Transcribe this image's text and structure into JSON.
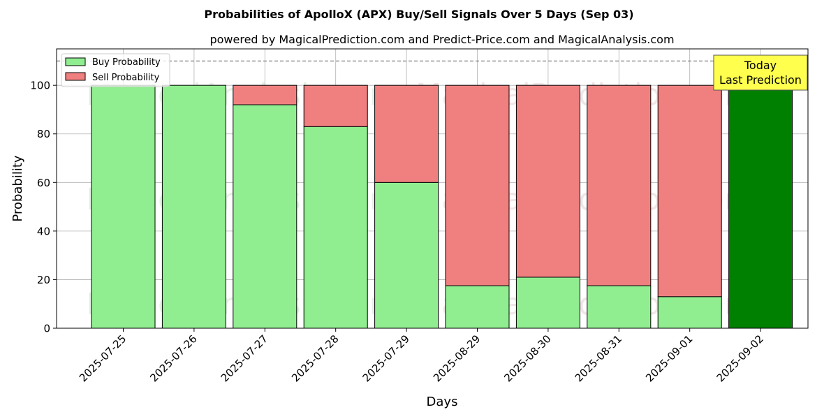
{
  "chart_data": {
    "type": "bar",
    "stacked": true,
    "title": "Probabilities of ApolloX (APX) Buy/Sell Signals Over 5 Days (Sep 03)",
    "subtitle": "powered by MagicalPrediction.com and Predict-Price.com and MagicalAnalysis.com",
    "xlabel": "Days",
    "ylabel": "Probability",
    "ylim": [
      0,
      115
    ],
    "yticks": [
      0,
      20,
      40,
      60,
      80,
      100
    ],
    "grid": true,
    "legend_position": "top-left",
    "reference_line": {
      "y": 110,
      "style": "dashed"
    },
    "categories": [
      "2025-07-25",
      "2025-07-26",
      "2025-07-27",
      "2025-07-28",
      "2025-07-29",
      "2025-08-29",
      "2025-08-30",
      "2025-08-31",
      "2025-09-01",
      "2025-09-02"
    ],
    "series": [
      {
        "name": "Buy Probability",
        "color": "#90ee90",
        "values": [
          100,
          100,
          92,
          83,
          60,
          17.5,
          21,
          17.5,
          13,
          100
        ]
      },
      {
        "name": "Sell Probability",
        "color": "#f08080",
        "values": [
          0,
          0,
          8,
          17,
          40,
          82.5,
          79,
          82.5,
          87,
          0
        ]
      }
    ],
    "highlight": {
      "index": 9,
      "color": "#008000"
    },
    "annotation": {
      "lines": [
        "Today",
        "Last Prediction"
      ],
      "background": "#ffff4d"
    },
    "watermarks": [
      "MagicalAnalysis.com",
      "MagicalPrediction.com"
    ]
  }
}
